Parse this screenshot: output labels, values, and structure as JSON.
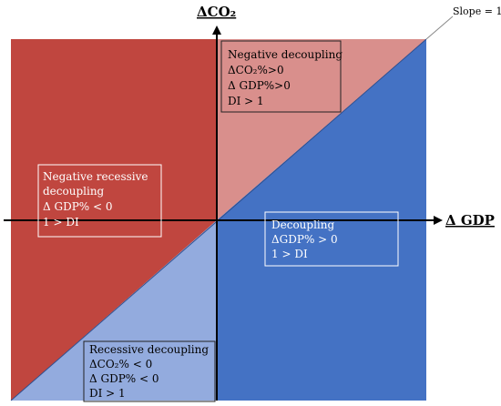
{
  "axes": {
    "y_label": "ΔCO₂",
    "x_label": "Δ GDP"
  },
  "slope_label": "Slope = 1",
  "colors": {
    "strong_red": "#c0463f",
    "light_red": "#d98f8c",
    "strong_blue": "#4472c4",
    "light_blue": "#93abde",
    "axis": "#000000"
  },
  "quadrants": {
    "negative_decoupling": {
      "title": "Negative decoupling",
      "lines": [
        "ΔCO₂%>0",
        "Δ GDP%>0",
        "DI > 1"
      ]
    },
    "negative_recessive_decoupling": {
      "title_line1": "Negative recessive",
      "title_line2": "decoupling",
      "lines": [
        "Δ GDP% < 0",
        "1 > DI"
      ]
    },
    "decoupling": {
      "title": "Decoupling",
      "lines": [
        "ΔGDP% > 0",
        "1 > DI"
      ]
    },
    "recessive_decoupling": {
      "title": "Recessive decoupling",
      "lines": [
        "ΔCO₂% < 0",
        "Δ GDP% < 0",
        "DI > 1"
      ]
    }
  }
}
